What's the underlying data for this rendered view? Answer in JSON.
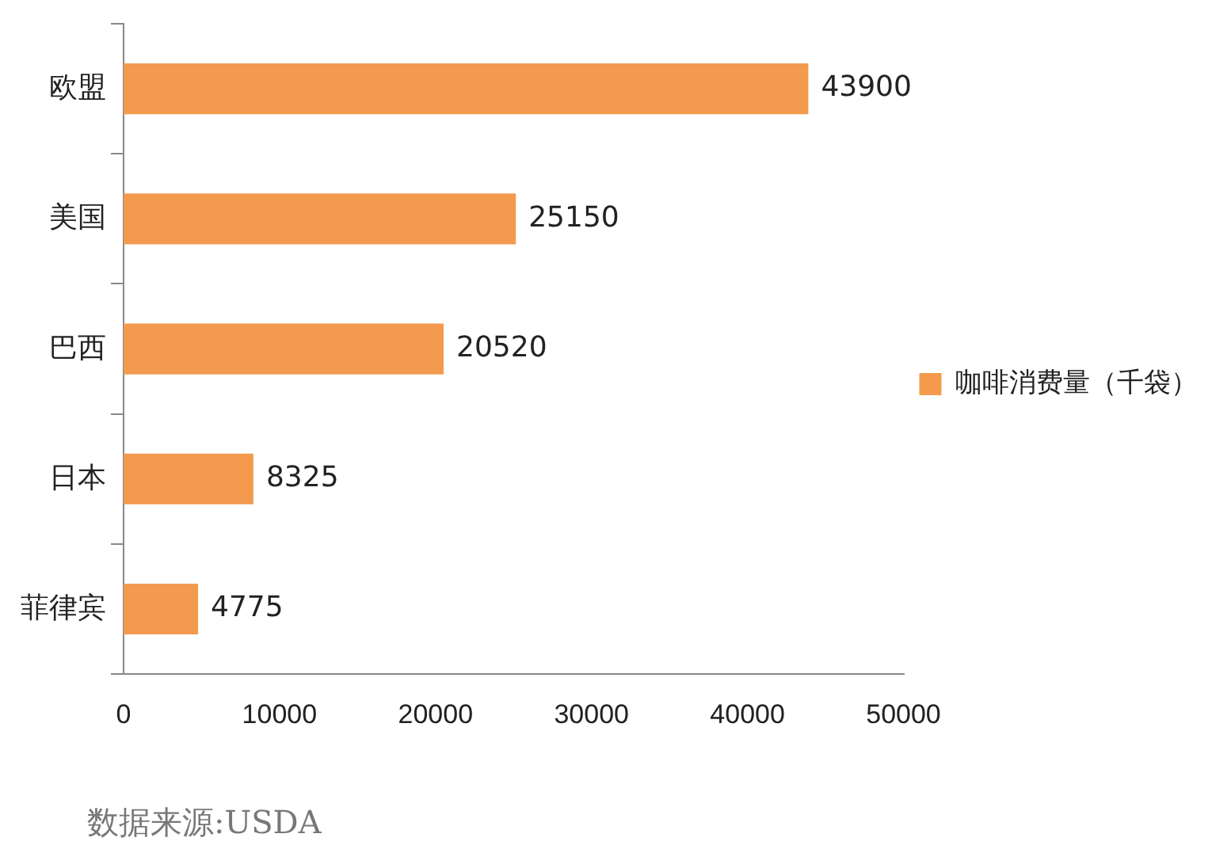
{
  "chart_data": {
    "type": "bar",
    "orientation": "horizontal",
    "categories": [
      "欧盟",
      "美国",
      "巴西",
      "日本",
      "菲律宾"
    ],
    "series": [
      {
        "name": "咖啡消费量（千袋）",
        "color": "#f39a4f",
        "values": [
          43900,
          25150,
          20520,
          8325,
          4775
        ]
      }
    ],
    "xlim": [
      0,
      50000
    ],
    "xticks": [
      0,
      10000,
      20000,
      30000,
      40000,
      50000
    ],
    "grid": false,
    "legend": "right",
    "data_labels": true,
    "annotations": [
      "数据来源:USDA"
    ]
  }
}
